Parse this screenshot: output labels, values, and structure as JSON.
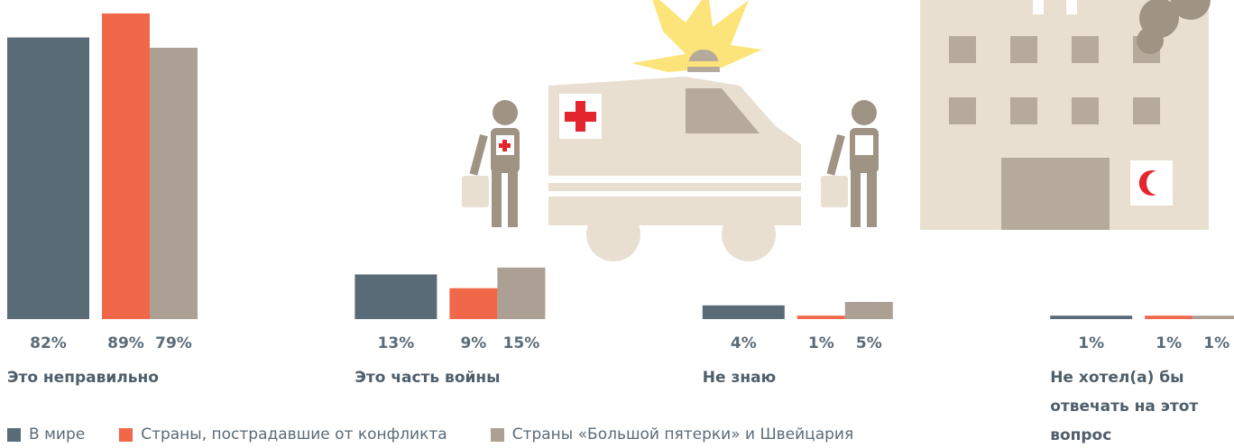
{
  "chart_data": {
    "type": "bar",
    "categories": [
      "Это неправильно",
      "Это часть войны",
      "Не знаю",
      "Не хотел(а) бы отвечать на этот вопрос"
    ],
    "series": [
      {
        "name": "В мире",
        "color": "#5a6b78",
        "values": [
          82,
          13,
          4,
          1
        ],
        "value_labels": [
          "82%",
          "13%",
          "4%",
          "1%"
        ]
      },
      {
        "name": "Страны, пострадавшие от конфликта",
        "color": "#f0674a",
        "values": [
          89,
          9,
          1,
          1
        ],
        "value_labels": [
          "89%",
          "9%",
          "1%",
          "1%"
        ]
      },
      {
        "name": "Страны «Большой пятерки» и Швейцария",
        "color": "#aba093",
        "values": [
          79,
          15,
          5,
          1
        ],
        "value_labels": [
          "79%",
          "15%",
          "5%",
          "1%"
        ]
      }
    ]
  }
}
